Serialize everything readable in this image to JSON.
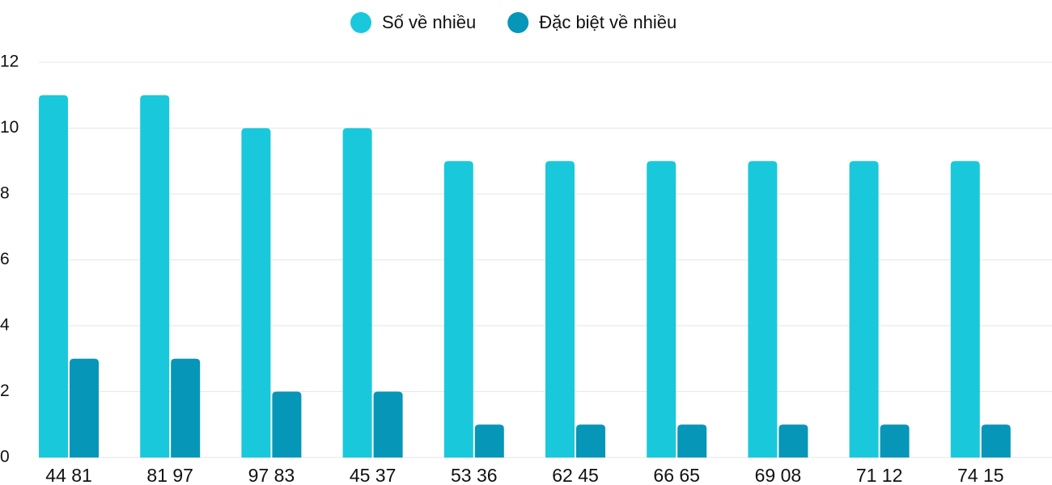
{
  "chart_data": {
    "type": "bar",
    "categories": [
      "44 81",
      "81 97",
      "97 83",
      "45 37",
      "53 36",
      "62 45",
      "66 65",
      "69 08",
      "71 12",
      "74 15"
    ],
    "series": [
      {
        "name": "Số về nhiều",
        "color": "#1ac8db",
        "values": [
          11,
          11,
          10,
          10,
          9,
          9,
          9,
          9,
          9,
          9
        ]
      },
      {
        "name": "Đặc biệt về nhiều",
        "color": "#0696b8",
        "values": [
          3,
          3,
          2,
          2,
          1,
          1,
          1,
          1,
          1,
          1
        ]
      }
    ],
    "ylim": [
      0,
      12
    ],
    "yticks": [
      0,
      2,
      4,
      6,
      8,
      10,
      12
    ],
    "grid": true,
    "legend": "top"
  }
}
